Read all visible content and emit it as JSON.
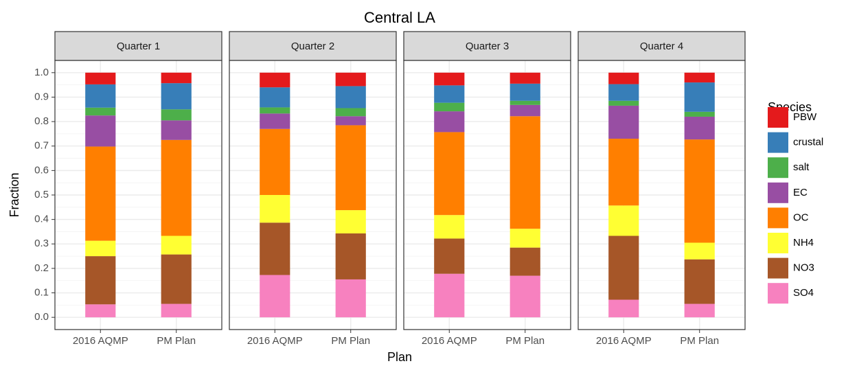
{
  "chart_data": {
    "type": "bar",
    "stacked": true,
    "title": "Central LA",
    "x_label": "Plan",
    "y_label": "Fraction",
    "legend_title": "Species",
    "categories": [
      "2016 AQMP",
      "PM Plan"
    ],
    "series": [
      {
        "name": "PBW",
        "color": "#e41a1c"
      },
      {
        "name": "crustal",
        "color": "#377eb8"
      },
      {
        "name": "salt",
        "color": "#4daf4a"
      },
      {
        "name": "EC",
        "color": "#984ea3"
      },
      {
        "name": "OC",
        "color": "#ff7f00"
      },
      {
        "name": "NH4",
        "color": "#ffff33"
      },
      {
        "name": "NO3",
        "color": "#a65628"
      },
      {
        "name": "SO4",
        "color": "#f781bf"
      }
    ],
    "facets": [
      {
        "label": "Quarter 1",
        "values": [
          [
            0.048,
            0.043
          ],
          [
            0.095,
            0.107
          ],
          [
            0.032,
            0.045
          ],
          [
            0.127,
            0.08
          ],
          [
            0.385,
            0.392
          ],
          [
            0.063,
            0.076
          ],
          [
            0.197,
            0.202
          ],
          [
            0.053,
            0.055
          ]
        ]
      },
      {
        "label": "Quarter 2",
        "values": [
          [
            0.06,
            0.055
          ],
          [
            0.082,
            0.09
          ],
          [
            0.025,
            0.033
          ],
          [
            0.063,
            0.037
          ],
          [
            0.27,
            0.347
          ],
          [
            0.113,
            0.095
          ],
          [
            0.214,
            0.188
          ],
          [
            0.173,
            0.155
          ]
        ]
      },
      {
        "label": "Quarter 3",
        "values": [
          [
            0.052,
            0.045
          ],
          [
            0.071,
            0.07
          ],
          [
            0.035,
            0.017
          ],
          [
            0.085,
            0.046
          ],
          [
            0.339,
            0.46
          ],
          [
            0.096,
            0.077
          ],
          [
            0.144,
            0.115
          ],
          [
            0.178,
            0.17
          ]
        ]
      },
      {
        "label": "Quarter 4",
        "values": [
          [
            0.047,
            0.04
          ],
          [
            0.068,
            0.12
          ],
          [
            0.02,
            0.02
          ],
          [
            0.135,
            0.093
          ],
          [
            0.273,
            0.422
          ],
          [
            0.124,
            0.068
          ],
          [
            0.261,
            0.182
          ],
          [
            0.072,
            0.055
          ]
        ]
      }
    ],
    "ylim": [
      -0.05,
      1.05
    ],
    "yticks": [
      {
        "value": 0,
        "label": "0.0"
      },
      0.1,
      0.2,
      0.3,
      0.4,
      0.5,
      0.6,
      0.7,
      0.8,
      0.9,
      {
        "value": 1,
        "label": "1.0"
      }
    ],
    "grid": true,
    "minor_grid": true,
    "legend_position": "right"
  }
}
